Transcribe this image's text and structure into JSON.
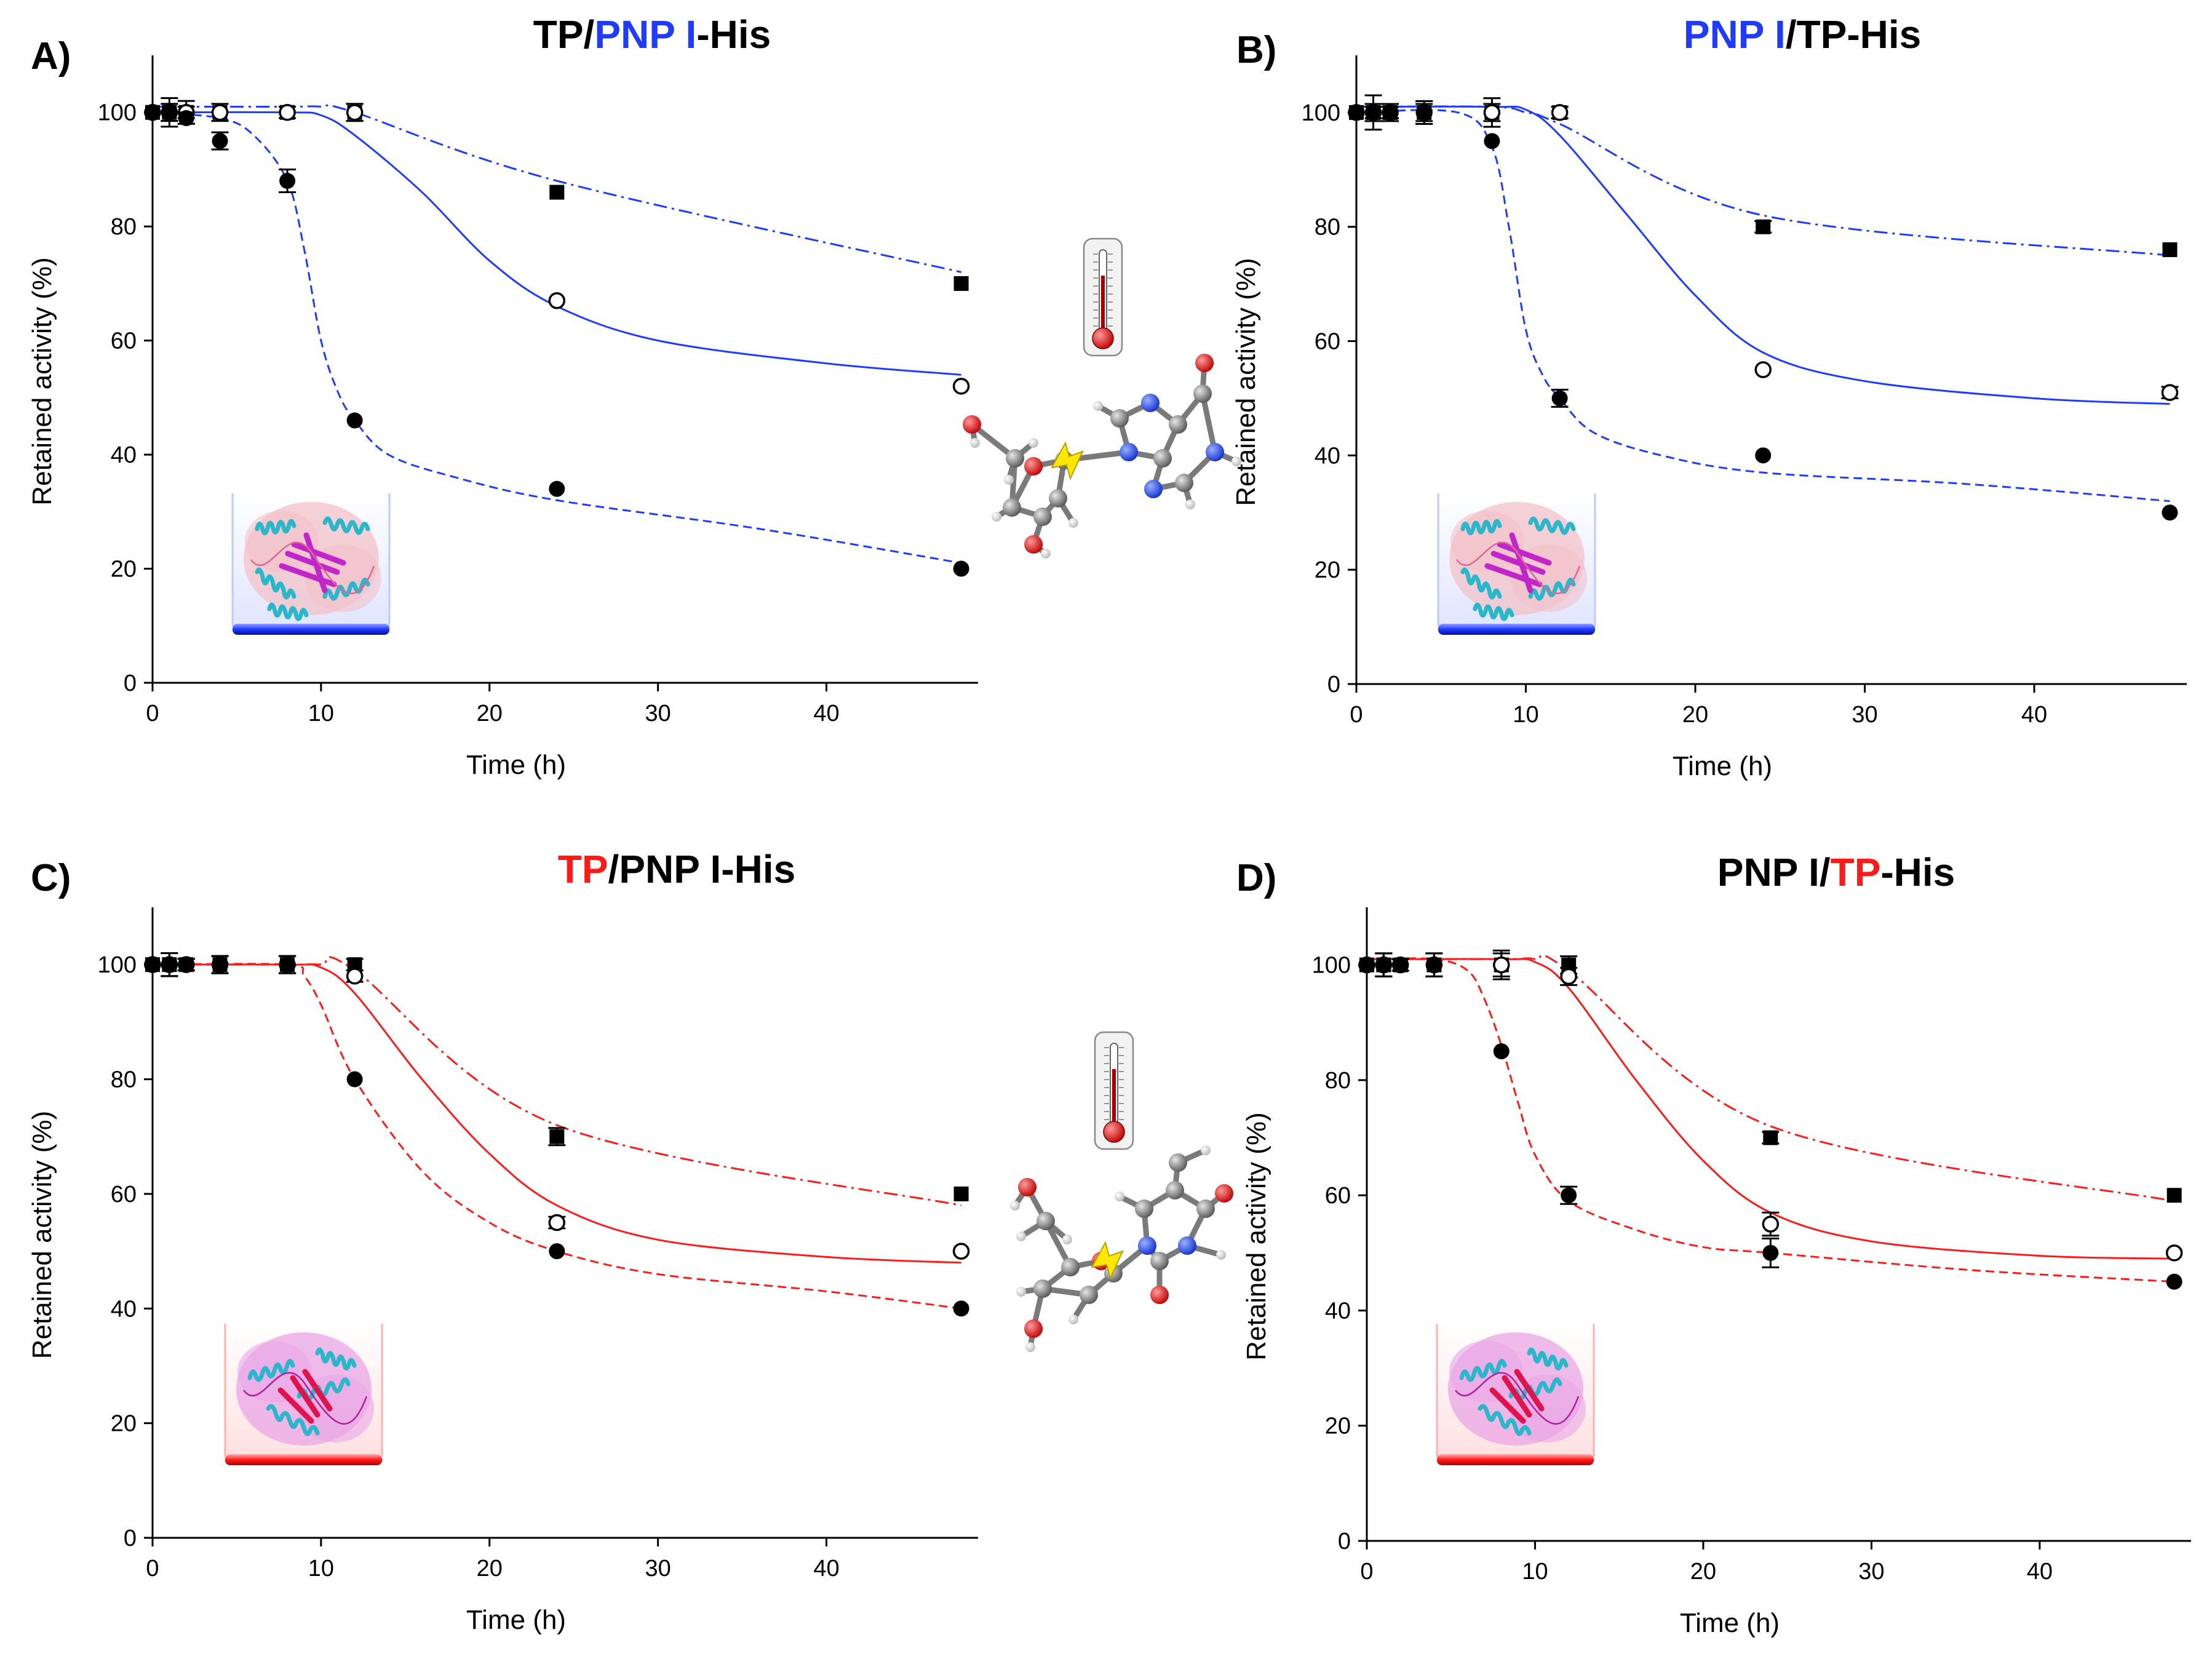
{
  "figure": {
    "colors": {
      "blue": "#1f3bff",
      "red": "#ff1a1a",
      "black": "#000000",
      "ink": "#111111"
    }
  },
  "chart_data": [
    {
      "panel": "A)",
      "type": "line",
      "title_parts": [
        {
          "text": "TP/",
          "color": "black"
        },
        {
          "text": "PNP I",
          "color": "blue"
        },
        {
          "text": "-His",
          "color": "black"
        }
      ],
      "xlabel": "Time (h)",
      "ylabel": "Retained activity (%)",
      "xlim": [
        0,
        49
      ],
      "ylim": [
        0,
        110
      ],
      "xticks": [
        0,
        10,
        20,
        30,
        40
      ],
      "yticks": [
        0,
        20,
        40,
        60,
        80,
        100
      ],
      "line_color": "blue",
      "inset": "protein-blue",
      "series": [
        {
          "name": "dash-dot (filled squares)",
          "marker": "square",
          "dash": "dashdot",
          "x": [
            0,
            1,
            2,
            4,
            8,
            12,
            24,
            48
          ],
          "y": [
            100,
            100,
            100,
            100,
            100,
            100,
            86,
            70
          ],
          "err": [
            0,
            1.5,
            1,
            0,
            0,
            1.5,
            0,
            0
          ],
          "fit_x": [
            0,
            8,
            10,
            12,
            24,
            48
          ],
          "fit_y": [
            101,
            101,
            101,
            100,
            88,
            72
          ]
        },
        {
          "name": "solid (open circles)",
          "marker": "open",
          "dash": "solid",
          "x": [
            0,
            1,
            2,
            4,
            8,
            12,
            24,
            48
          ],
          "y": [
            100,
            100,
            100,
            100,
            100,
            100,
            67,
            52
          ],
          "err": [
            0,
            2.5,
            2,
            1.5,
            1,
            1.5,
            0,
            0
          ],
          "fit_x": [
            0,
            8,
            10,
            12,
            16,
            20,
            24,
            30,
            40,
            48
          ],
          "fit_y": [
            100,
            100,
            99.5,
            96,
            86,
            74,
            66,
            60,
            56,
            54
          ]
        },
        {
          "name": "dashed (filled circles)",
          "marker": "filled",
          "dash": "dashed",
          "x": [
            0,
            1,
            2,
            4,
            8,
            12,
            24,
            48
          ],
          "y": [
            100,
            100,
            99,
            95,
            88,
            46,
            34,
            20
          ],
          "err": [
            0,
            1.5,
            1,
            1.5,
            2,
            0,
            0,
            0
          ],
          "fit_x": [
            0,
            4,
            6,
            8,
            9,
            10,
            11,
            12,
            14,
            18,
            24,
            36,
            48
          ],
          "fit_y": [
            100,
            99,
            96,
            88,
            76,
            60,
            51,
            46,
            40,
            36,
            32,
            27,
            21
          ]
        }
      ]
    },
    {
      "panel": "B)",
      "type": "line",
      "title_parts": [
        {
          "text": "PNP I",
          "color": "blue"
        },
        {
          "text": "/TP-His",
          "color": "black"
        }
      ],
      "xlabel": "Time (h)",
      "ylabel": "Retained activity (%)",
      "xlim": [
        0,
        49
      ],
      "ylim": [
        0,
        110
      ],
      "xticks": [
        0,
        10,
        20,
        30,
        40
      ],
      "yticks": [
        0,
        20,
        40,
        60,
        80,
        100
      ],
      "line_color": "blue",
      "inset": "protein-blue",
      "series": [
        {
          "name": "dash-dot (filled squares)",
          "marker": "square",
          "dash": "dashdot",
          "x": [
            0,
            1,
            2,
            4,
            8,
            12,
            24,
            48
          ],
          "y": [
            100,
            100,
            100,
            100,
            100,
            100,
            80,
            76
          ],
          "err": [
            0,
            1.5,
            1,
            2,
            1.5,
            1,
            1,
            0
          ],
          "fit_x": [
            0,
            8,
            10,
            12,
            24,
            48
          ],
          "fit_y": [
            101,
            101,
            100,
            98,
            82,
            75
          ]
        },
        {
          "name": "solid (open circles)",
          "marker": "open",
          "dash": "solid",
          "x": [
            0,
            1,
            2,
            4,
            8,
            12,
            24,
            48
          ],
          "y": [
            100,
            100,
            100,
            100,
            100,
            100,
            55,
            51
          ],
          "err": [
            0,
            3,
            1.5,
            2,
            2.5,
            1,
            0,
            1
          ],
          "fit_x": [
            0,
            8,
            10,
            12,
            16,
            20,
            24,
            30,
            40,
            48
          ],
          "fit_y": [
            101,
            101,
            100.5,
            96,
            82,
            68,
            58,
            53,
            50,
            49
          ]
        },
        {
          "name": "dashed (filled circles)",
          "marker": "filled",
          "dash": "dashed",
          "x": [
            0,
            1,
            2,
            4,
            8,
            12,
            24,
            48
          ],
          "y": [
            100,
            100,
            100,
            100,
            95,
            50,
            40,
            30
          ],
          "err": [
            0,
            1,
            1,
            1.5,
            0,
            1.5,
            0,
            0
          ],
          "fit_x": [
            0,
            6,
            8,
            9,
            10,
            11,
            12,
            14,
            18,
            24,
            36,
            48
          ],
          "fit_y": [
            100,
            100,
            94,
            80,
            62,
            54,
            50,
            44,
            40,
            37,
            35,
            32
          ]
        }
      ]
    },
    {
      "panel": "C)",
      "type": "line",
      "title_parts": [
        {
          "text": "TP",
          "color": "red"
        },
        {
          "text": "/PNP I-His",
          "color": "black"
        }
      ],
      "xlabel": "Time (h)",
      "ylabel": "Retained activity (%)",
      "xlim": [
        0,
        49
      ],
      "ylim": [
        0,
        110
      ],
      "xticks": [
        0,
        10,
        20,
        30,
        40
      ],
      "yticks": [
        0,
        20,
        40,
        60,
        80,
        100
      ],
      "line_color": "red",
      "inset": "protein-red",
      "series": [
        {
          "name": "dash-dot (filled squares)",
          "marker": "square",
          "dash": "dashdot",
          "x": [
            0,
            1,
            2,
            4,
            8,
            12,
            24,
            48
          ],
          "y": [
            100,
            100,
            100,
            100,
            100,
            100,
            70,
            60
          ],
          "err": [
            0,
            2,
            1,
            1.5,
            1.5,
            1,
            1.5,
            0
          ],
          "fit_x": [
            0,
            8,
            10,
            12,
            24,
            48
          ],
          "fit_y": [
            100,
            100,
            100,
            99,
            72,
            58
          ]
        },
        {
          "name": "solid (open circles)",
          "marker": "open",
          "dash": "solid",
          "x": [
            0,
            1,
            2,
            4,
            8,
            12,
            24,
            48
          ],
          "y": [
            100,
            100,
            100,
            100,
            100,
            98,
            55,
            50
          ],
          "err": [
            0,
            2,
            1,
            1.5,
            1.5,
            1,
            1,
            0
          ],
          "fit_x": [
            0,
            8,
            10,
            12,
            16,
            20,
            24,
            30,
            40,
            48
          ],
          "fit_y": [
            100,
            100,
            99.5,
            95,
            80,
            67,
            58,
            52,
            49,
            48
          ]
        },
        {
          "name": "dashed (filled circles)",
          "marker": "filled",
          "dash": "dashed",
          "x": [
            0,
            1,
            2,
            4,
            8,
            12,
            24,
            48
          ],
          "y": [
            100,
            100,
            100,
            100,
            100,
            80,
            50,
            40
          ],
          "err": [
            0,
            2,
            1,
            1.5,
            1.5,
            0,
            0,
            0
          ],
          "fit_x": [
            0,
            8,
            9,
            10,
            12,
            16,
            20,
            24,
            30,
            40,
            48
          ],
          "fit_y": [
            100,
            100,
            98,
            93,
            80,
            64,
            55,
            50,
            46,
            43,
            40
          ]
        }
      ]
    },
    {
      "panel": "D)",
      "type": "line",
      "title_parts": [
        {
          "text": "PNP I/",
          "color": "black"
        },
        {
          "text": "TP",
          "color": "red"
        },
        {
          "text": "-His",
          "color": "black"
        }
      ],
      "xlabel": "Time (h)",
      "ylabel": "Retained activity (%)",
      "xlim": [
        0,
        49
      ],
      "ylim": [
        0,
        110
      ],
      "xticks": [
        0,
        10,
        20,
        30,
        40
      ],
      "yticks": [
        0,
        20,
        40,
        60,
        80,
        100
      ],
      "line_color": "red",
      "inset": "protein-red",
      "series": [
        {
          "name": "dash-dot (filled squares)",
          "marker": "square",
          "dash": "dashdot",
          "x": [
            0,
            1,
            2,
            4,
            8,
            12,
            24,
            48
          ],
          "y": [
            100,
            100,
            100,
            100,
            100,
            100,
            70,
            60
          ],
          "err": [
            0,
            2,
            1,
            2,
            2.5,
            1.5,
            1,
            0
          ],
          "fit_x": [
            0,
            8,
            10,
            12,
            24,
            48
          ],
          "fit_y": [
            101,
            101,
            101,
            99,
            72,
            59
          ]
        },
        {
          "name": "solid (open circles)",
          "marker": "open",
          "dash": "solid",
          "x": [
            0,
            1,
            2,
            4,
            8,
            12,
            24,
            48
          ],
          "y": [
            100,
            100,
            100,
            100,
            100,
            98,
            55,
            50
          ],
          "err": [
            0,
            2,
            1,
            2,
            2,
            1.5,
            2,
            0
          ],
          "fit_x": [
            0,
            8,
            10,
            12,
            16,
            20,
            24,
            30,
            40,
            48
          ],
          "fit_y": [
            101,
            101,
            100.5,
            96,
            80,
            66,
            57,
            52,
            49.5,
            49
          ]
        },
        {
          "name": "dashed (filled circles)",
          "marker": "filled",
          "dash": "dashed",
          "x": [
            0,
            1,
            2,
            4,
            8,
            12,
            24,
            48
          ],
          "y": [
            100,
            100,
            100,
            100,
            85,
            60,
            50,
            45
          ],
          "err": [
            0,
            2,
            1,
            2,
            0,
            1.5,
            2.5,
            0
          ],
          "fit_x": [
            0,
            4,
            6,
            7,
            8,
            9,
            10,
            12,
            16,
            20,
            24,
            36,
            48
          ],
          "fit_y": [
            101,
            101,
            99,
            94,
            86,
            76,
            67,
            59,
            54,
            51,
            50,
            47,
            45
          ]
        }
      ]
    }
  ]
}
